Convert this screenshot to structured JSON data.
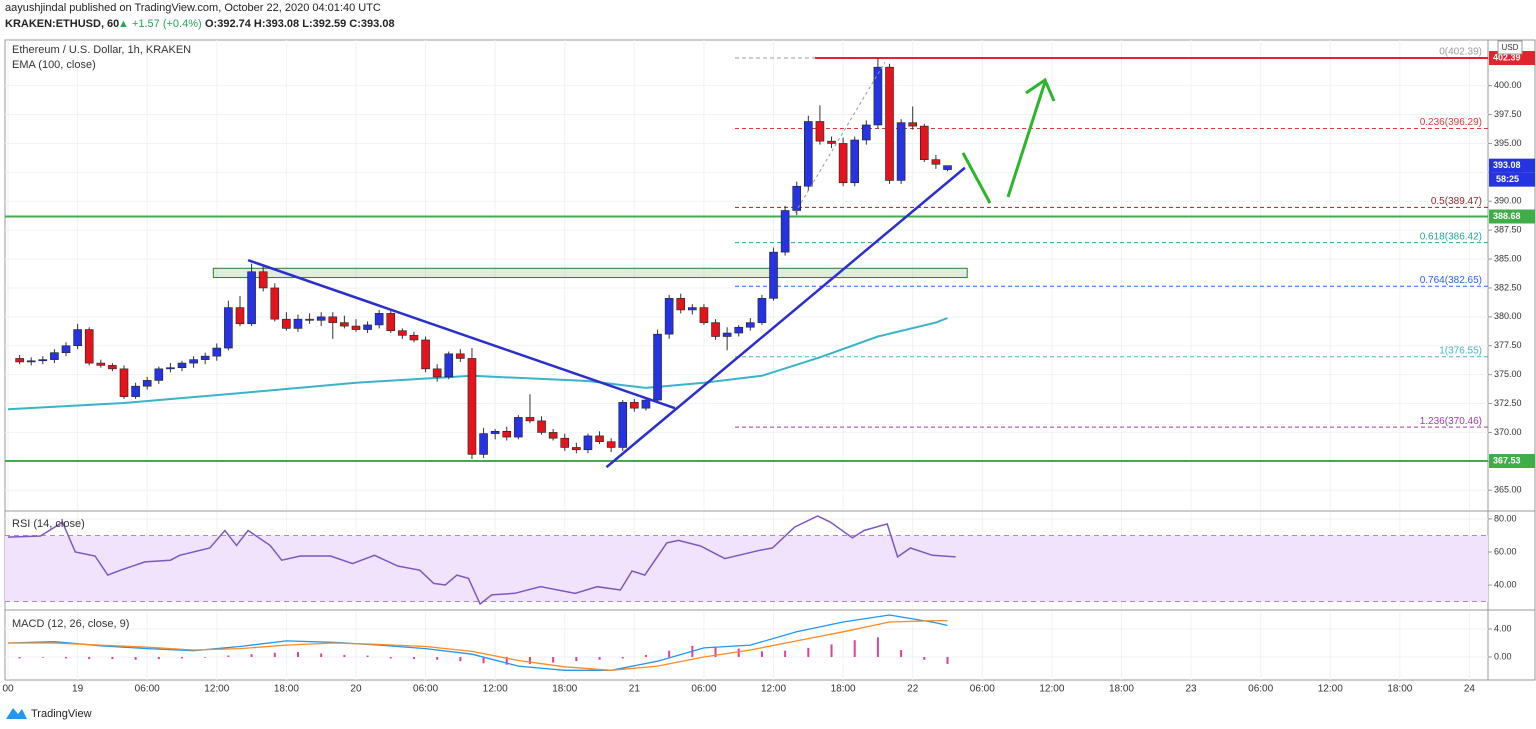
{
  "header": {
    "line1": "aayushjindal published on TradingView.com, October 22, 2020 04:01:40 UTC",
    "symbol": "KRAKEN:ETHUSD, 60",
    "change": "▲ +1.57 (+0.4%)",
    "ohlc": "O:392.74 H:393.08 L:392.59 C:393.08"
  },
  "footer": {
    "brand": "TradingView"
  },
  "chart_data": [
    {
      "type": "candlestick",
      "title": "Ethereum / U.S. Dollar, 1h, KRAKEN",
      "currency": "USD",
      "up_color": "#2633e0",
      "down_color": "#e3141b",
      "x": [
        0,
        1,
        2,
        3,
        4,
        5,
        6,
        7,
        8,
        9,
        10,
        11,
        12,
        13,
        14,
        15,
        16,
        17,
        18,
        19,
        20,
        21,
        22,
        23,
        24,
        25,
        26,
        27,
        28,
        29,
        30,
        31,
        32,
        33,
        34,
        35,
        36,
        37,
        38,
        39,
        40,
        41,
        42,
        43,
        44,
        45,
        46,
        47,
        48,
        49,
        50,
        51,
        52,
        53,
        54,
        55,
        56,
        57,
        58,
        59,
        60,
        61,
        62,
        63,
        64,
        65,
        66,
        67,
        68,
        69,
        70,
        71,
        72,
        73,
        74,
        75,
        76,
        77,
        78,
        79,
        80
      ],
      "open": [
        376.4,
        376.1,
        376.2,
        376.3,
        376.9,
        377.5,
        378.9,
        376.0,
        375.8,
        375.5,
        373.1,
        374.0,
        374.5,
        375.5,
        375.6,
        376.0,
        376.3,
        376.6,
        377.3,
        380.8,
        379.4,
        383.9,
        382.5,
        379.8,
        379.0,
        379.8,
        379.7,
        380.0,
        379.5,
        379.2,
        378.9,
        379.3,
        380.3,
        378.8,
        378.4,
        378.0,
        375.5,
        374.8,
        376.8,
        376.4,
        368.1,
        369.9,
        370.1,
        369.6,
        371.3,
        371.0,
        370.0,
        369.5,
        368.7,
        368.5,
        369.7,
        369.2,
        368.7,
        372.6,
        372.1,
        372.8,
        378.5,
        381.6,
        380.6,
        380.8,
        379.5,
        378.3,
        378.6,
        379.1,
        379.5,
        381.6,
        385.6,
        389.2,
        391.3,
        396.9,
        395.2,
        395.0,
        391.6,
        395.3,
        396.6,
        401.6,
        391.8,
        396.8,
        396.5,
        393.6,
        392.74
      ],
      "high": [
        376.7,
        376.5,
        376.6,
        377.2,
        377.8,
        379.4,
        379.1,
        376.3,
        376.0,
        375.8,
        374.3,
        374.8,
        375.7,
        376.0,
        376.2,
        376.6,
        376.9,
        377.7,
        381.4,
        381.8,
        384.6,
        384.4,
        382.9,
        380.4,
        380.2,
        380.3,
        380.4,
        380.4,
        380.1,
        379.8,
        379.6,
        380.6,
        380.6,
        379.0,
        378.7,
        378.3,
        375.9,
        377.0,
        377.2,
        377.3,
        370.4,
        370.3,
        370.5,
        371.5,
        373.3,
        371.4,
        370.3,
        369.9,
        369.1,
        369.9,
        370.1,
        369.5,
        372.8,
        372.9,
        373.0,
        378.9,
        381.9,
        382.0,
        381.1,
        381.1,
        379.8,
        379.1,
        379.3,
        379.9,
        381.9,
        386.0,
        389.6,
        391.7,
        397.4,
        398.3,
        395.6,
        395.5,
        395.6,
        397.0,
        402.4,
        401.9,
        397.1,
        398.2,
        396.7,
        394.0,
        393.08
      ],
      "low": [
        375.9,
        375.8,
        375.9,
        376.0,
        376.6,
        377.2,
        375.8,
        375.6,
        375.3,
        372.9,
        372.9,
        373.7,
        374.2,
        375.2,
        375.3,
        375.6,
        375.9,
        376.2,
        377.1,
        379.2,
        379.2,
        382.2,
        379.6,
        378.8,
        378.7,
        379.4,
        379.2,
        378.1,
        379.0,
        378.7,
        378.6,
        379.0,
        378.6,
        378.1,
        377.8,
        375.2,
        374.4,
        374.6,
        376.1,
        367.7,
        367.8,
        369.4,
        369.3,
        369.4,
        370.8,
        369.8,
        369.3,
        368.4,
        368.2,
        368.2,
        369.0,
        368.3,
        368.4,
        371.8,
        371.9,
        372.5,
        378.1,
        380.3,
        380.2,
        379.3,
        378.0,
        377.1,
        378.3,
        378.8,
        379.3,
        381.4,
        385.3,
        388.8,
        390.9,
        394.9,
        394.6,
        391.3,
        391.3,
        394.9,
        396.3,
        391.5,
        391.5,
        396.2,
        393.4,
        392.8,
        392.59
      ],
      "close": [
        376.1,
        376.2,
        376.3,
        376.9,
        377.5,
        378.9,
        376.0,
        375.8,
        375.5,
        373.1,
        374.0,
        374.5,
        375.5,
        375.6,
        376.0,
        376.3,
        376.6,
        377.3,
        380.8,
        379.4,
        383.9,
        382.5,
        379.8,
        379.0,
        379.8,
        379.7,
        380.0,
        379.5,
        379.2,
        378.9,
        379.3,
        380.3,
        378.8,
        378.4,
        378.0,
        375.5,
        374.8,
        376.8,
        376.4,
        368.1,
        369.9,
        370.1,
        369.6,
        371.3,
        371.0,
        370.0,
        369.5,
        368.7,
        368.5,
        369.7,
        369.2,
        368.7,
        372.6,
        372.1,
        372.8,
        378.5,
        381.6,
        380.6,
        380.8,
        379.5,
        378.3,
        378.6,
        379.1,
        379.5,
        381.6,
        385.6,
        389.2,
        391.3,
        396.9,
        395.2,
        395.0,
        391.6,
        395.3,
        396.6,
        401.6,
        391.8,
        396.8,
        396.5,
        393.6,
        393.2,
        393.08
      ],
      "xlim": [
        -1.26,
        126.6
      ],
      "xticks": [
        {
          "value": -1,
          "label": "00"
        },
        {
          "value": 5,
          "label": "19"
        },
        {
          "value": 11,
          "label": "06:00"
        },
        {
          "value": 17,
          "label": "12:00"
        },
        {
          "value": 23,
          "label": "18:00"
        },
        {
          "value": 29,
          "label": "20"
        },
        {
          "value": 35,
          "label": "06:00"
        },
        {
          "value": 41,
          "label": "12:00"
        },
        {
          "value": 47,
          "label": "18:00"
        },
        {
          "value": 53,
          "label": "21"
        },
        {
          "value": 59,
          "label": "06:00"
        },
        {
          "value": 65,
          "label": "12:00"
        },
        {
          "value": 71,
          "label": "18:00"
        },
        {
          "value": 77,
          "label": "22"
        },
        {
          "value": 83,
          "label": "06:00"
        },
        {
          "value": 89,
          "label": "12:00"
        },
        {
          "value": 95,
          "label": "18:00"
        },
        {
          "value": 101,
          "label": "23"
        },
        {
          "value": 107,
          "label": "06:00"
        },
        {
          "value": 113,
          "label": "12:00"
        },
        {
          "value": 119,
          "label": "18:00"
        },
        {
          "value": 125,
          "label": "24"
        }
      ],
      "ylim": [
        363.29,
        403.95
      ],
      "yticks": [
        {
          "value": 365,
          "label": "365.00"
        },
        {
          "value": 367.5,
          "label": "367.50"
        },
        {
          "value": 370,
          "label": "370.00"
        },
        {
          "value": 372.5,
          "label": "372.50"
        },
        {
          "value": 375,
          "label": "375.00"
        },
        {
          "value": 377.5,
          "label": "377.50"
        },
        {
          "value": 380,
          "label": "380.00"
        },
        {
          "value": 382.5,
          "label": "382.50"
        },
        {
          "value": 385,
          "label": "385.00"
        },
        {
          "value": 387.5,
          "label": "387.50"
        },
        {
          "value": 390,
          "label": "390.00"
        },
        {
          "value": 392.5,
          "label": "392.50"
        },
        {
          "value": 395,
          "label": "395.00"
        },
        {
          "value": 397.5,
          "label": "397.50"
        },
        {
          "value": 400,
          "label": "400.00"
        }
      ],
      "grid": true,
      "ema": {
        "name": "EMA (100, close)",
        "color": "#3bb3c8",
        "x": [
          -1,
          9,
          19,
          29,
          39,
          49,
          54,
          59,
          64,
          69,
          74,
          79,
          80
        ],
        "values": [
          372.0,
          372.55,
          373.4,
          374.3,
          374.9,
          374.45,
          373.85,
          374.3,
          374.9,
          376.5,
          378.3,
          379.5,
          379.9
        ]
      },
      "fib_levels": [
        {
          "value": 402.39,
          "label": "0(402.39)",
          "color": "#9e9e9e"
        },
        {
          "value": 396.29,
          "label": "0.236(396.29)",
          "color": "#e53935"
        },
        {
          "value": 389.47,
          "label": "0.5(389.47)",
          "color": "#8d2b2b"
        },
        {
          "value": 386.42,
          "label": "0.618(386.42)",
          "color": "#26a69a"
        },
        {
          "value": 382.65,
          "label": "0.764(382.65)",
          "color": "#2962ff"
        },
        {
          "value": 376.55,
          "label": "1(376.55)",
          "color": "#4cb6c4"
        },
        {
          "value": 370.46,
          "label": "1.236(370.46)",
          "color": "#a23bb5"
        }
      ],
      "levels": [
        {
          "value": 402.39,
          "color": "#e0262c"
        },
        {
          "value": 388.68,
          "color": "#3fae49"
        },
        {
          "value": 367.53,
          "color": "#3fae49"
        }
      ],
      "zone": {
        "x": [
          16.7,
          81.7
        ],
        "values": [
          383.4,
          384.2
        ],
        "color": "#2e7d32"
      },
      "trendlines": [
        {
          "x": [
            19.7,
            56.5
          ],
          "values": [
            384.9,
            372.1
          ],
          "color": "#2b2fd1"
        },
        {
          "x": [
            50.6,
            81.5
          ],
          "values": [
            367.0,
            392.9
          ],
          "color": "#2b2fd1"
        }
      ],
      "last_price": 393.08,
      "countdown": "58:25",
      "last_color": "#2633e0"
    },
    {
      "type": "line",
      "title": "RSI (14, close)",
      "color": "#7e57c2",
      "x": [
        -1,
        1.8,
        3.7,
        4.8,
        6.5,
        7.6,
        8.7,
        10.8,
        13,
        13.8,
        16.4,
        17.7,
        18.7,
        19.7,
        21.6,
        22.6,
        24.2,
        26.8,
        28.7,
        30.6,
        32.6,
        34.5,
        35.7,
        36.7,
        37.7,
        38.7,
        39.7,
        40.7,
        42.7,
        44.9,
        47.9,
        49.8,
        51.8,
        52.8,
        53.9,
        55.8,
        56.8,
        58.7,
        60.8,
        63.8,
        64.9,
        66.8,
        68.8,
        69.9,
        71.8,
        72.8,
        74.8,
        75.7,
        76.8,
        78.7,
        80.7
      ],
      "values": [
        69,
        69.7,
        78,
        60,
        57.6,
        46,
        49,
        54,
        55,
        58,
        62.4,
        73,
        64,
        73,
        64,
        55,
        57.6,
        57.6,
        53,
        58,
        51.5,
        49,
        41,
        40,
        46,
        44,
        28.5,
        34,
        35,
        39,
        35,
        39,
        37,
        48.5,
        46,
        65.5,
        67,
        63.6,
        56,
        61,
        62.4,
        75,
        81.8,
        78,
        68.5,
        73,
        77,
        57,
        62.4,
        58,
        57
      ],
      "ylim": [
        26.1,
        84.2
      ],
      "yticks": [
        {
          "value": 40,
          "label": "40.00"
        },
        {
          "value": 60,
          "label": "60.00"
        },
        {
          "value": 80,
          "label": "80.00"
        }
      ],
      "band": [
        30,
        70
      ],
      "band_color": "#f1e3fb"
    },
    {
      "type": "macd",
      "title": "MACD (12, 26, close, 9)",
      "x": [
        -1,
        3,
        7,
        11,
        15,
        19,
        23,
        27,
        31,
        35,
        39,
        43,
        47,
        51,
        55,
        59,
        63,
        67,
        71,
        75,
        79,
        80
      ],
      "series": [
        {
          "color": "#2196f3",
          "values": [
            2.0,
            2.2,
            1.6,
            1.2,
            0.9,
            1.5,
            2.3,
            2.1,
            1.7,
            1.2,
            0.4,
            -1.3,
            -1.9,
            -1.9,
            -0.6,
            1.3,
            1.7,
            3.6,
            5.0,
            6.0,
            4.9,
            4.5
          ]
        },
        {
          "color": "#ff8a1f",
          "values": [
            2.0,
            2.0,
            1.7,
            1.4,
            1.0,
            1.2,
            1.7,
            2.0,
            1.8,
            1.5,
            0.8,
            -0.5,
            -1.4,
            -1.9,
            -1.3,
            0.0,
            1.0,
            2.3,
            3.6,
            5.0,
            5.2,
            5.2
          ]
        }
      ],
      "histogram": {
        "color": "#e0409a",
        "x": [
          0,
          2,
          4,
          6,
          8,
          10,
          12,
          14,
          16,
          18,
          20,
          22,
          24,
          26,
          28,
          30,
          32,
          34,
          36,
          38,
          40,
          42,
          44,
          46,
          48,
          50,
          52,
          54,
          56,
          58,
          60,
          62,
          64,
          66,
          68,
          70,
          72,
          74,
          76,
          78,
          80
        ],
        "values": [
          -0.2,
          -0.1,
          -0.2,
          -0.3,
          -0.3,
          -0.4,
          -0.3,
          -0.2,
          -0.1,
          0.2,
          0.4,
          0.6,
          0.7,
          0.5,
          0.3,
          0.2,
          -0.2,
          -0.3,
          -0.4,
          -0.6,
          -0.9,
          -1.1,
          -1.0,
          -0.8,
          -0.6,
          -0.4,
          -0.2,
          0.3,
          0.9,
          1.6,
          1.5,
          1.2,
          0.8,
          0.9,
          1.3,
          1.8,
          2.4,
          2.8,
          1.0,
          -0.4,
          -1.0
        ]
      },
      "ylim": [
        -3.29,
        6.43
      ],
      "yticks": [
        {
          "value": 0,
          "label": "0.00"
        },
        {
          "value": 4,
          "label": "4.00"
        }
      ]
    }
  ]
}
